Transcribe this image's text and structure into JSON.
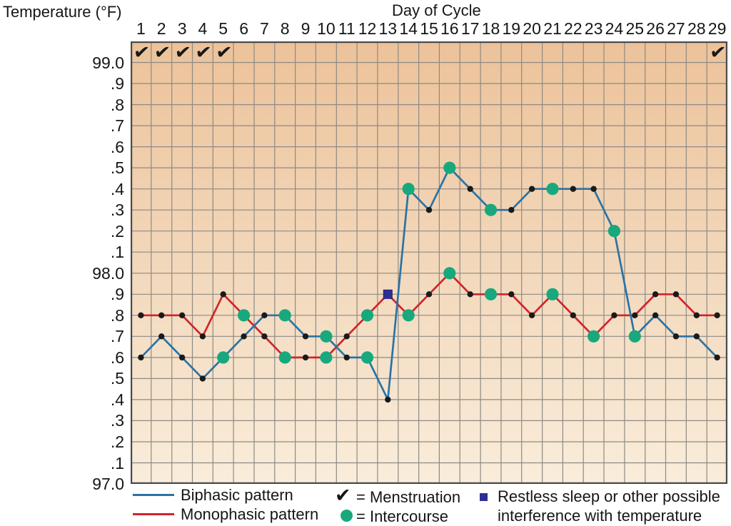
{
  "header": {
    "y_axis_title": "Temperature (°F)",
    "x_axis_title": "Day of Cycle"
  },
  "chart_data": {
    "type": "line",
    "x_axis_label": "Day of Cycle",
    "y_axis_label": "Temperature (°F)",
    "x": [
      1,
      2,
      3,
      4,
      5,
      6,
      7,
      8,
      9,
      10,
      11,
      12,
      13,
      14,
      15,
      16,
      17,
      18,
      19,
      20,
      21,
      22,
      23,
      24,
      25,
      26,
      27,
      28,
      29
    ],
    "x_tick_labels": [
      "1",
      "2",
      "3",
      "4",
      "5",
      "6",
      "7",
      "8",
      "9",
      "10",
      "11",
      "12",
      "13",
      "14",
      "15",
      "16",
      "17",
      "18",
      "19",
      "20",
      "21",
      "22",
      "23",
      "24",
      "25",
      "26",
      "27",
      "28",
      "29"
    ],
    "y_tick_labels": [
      "99.0",
      ".9",
      ".8",
      ".7",
      ".6",
      ".5",
      ".4",
      ".3",
      ".2",
      ".1",
      "98.0",
      ".9",
      ".8",
      ".7",
      ".6",
      ".5",
      ".4",
      ".3",
      ".2",
      ".1",
      "97.0"
    ],
    "y_range": [
      97.0,
      99.0
    ],
    "y_top_label_value": 99.0,
    "y_step": 0.1,
    "grid": true,
    "legend_position": "bottom",
    "series": [
      {
        "name": "Biphasic pattern",
        "color": "#2a73a6",
        "values": [
          97.6,
          97.7,
          97.6,
          97.5,
          97.6,
          97.7,
          97.8,
          97.8,
          97.7,
          97.7,
          97.6,
          97.6,
          97.4,
          98.4,
          98.3,
          98.5,
          98.4,
          98.3,
          98.3,
          98.4,
          98.4,
          98.4,
          98.4,
          98.2,
          97.7,
          97.8,
          97.7,
          97.7,
          97.6
        ],
        "intercourse_days": [
          5,
          8,
          10,
          12,
          14,
          16,
          18,
          21,
          24,
          25
        ],
        "restless_sleep_day": null
      },
      {
        "name": "Monophasic pattern",
        "color": "#d2232b",
        "values": [
          97.8,
          97.8,
          97.8,
          97.7,
          97.9,
          97.8,
          97.7,
          97.6,
          97.6,
          97.6,
          97.7,
          97.8,
          97.9,
          97.8,
          97.9,
          98.0,
          97.9,
          97.9,
          97.9,
          97.8,
          97.9,
          97.8,
          97.7,
          97.8,
          97.8,
          97.9,
          97.9,
          97.8,
          97.8
        ],
        "intercourse_days": [
          6,
          8,
          10,
          12,
          14,
          16,
          18,
          21,
          23
        ],
        "restless_sleep_day": 13
      }
    ],
    "menstruation_days": [
      1,
      2,
      3,
      4,
      5,
      29
    ],
    "restless_sleep": {
      "series": "Monophasic pattern",
      "day": 13,
      "value": 97.9
    },
    "markers": {
      "dot_color": "#1a1a1a",
      "intercourse_color": "#18a87d",
      "restless_color": "#2e2f94",
      "menstruation_glyph": "✔"
    }
  },
  "legend": {
    "biphasic_label": "Biphasic pattern",
    "monophasic_label": "Monophasic pattern",
    "menstruation_glyph": "✔",
    "menstruation_label": "= Menstruation",
    "intercourse_label": "= Intercourse",
    "restless_label": "Restless sleep or other possible interference with temperature"
  },
  "colors": {
    "plot_bg_top": "#ecc29a",
    "plot_bg_bottom": "#f9eddb",
    "grid_line": "#8e8a82",
    "plot_border": "#4a4a4a"
  }
}
